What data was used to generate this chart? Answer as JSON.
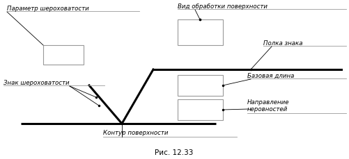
{
  "title": "Рис. 12.33",
  "bg_color": "#ffffff",
  "fig_width": 5.01,
  "fig_height": 2.29,
  "dpi": 100,
  "labels": {
    "param_shero": "Параметр шероховатости",
    "vid_obr": "Вид обработки поверхности",
    "polka": "Полка знака",
    "bazovaya": "Базовая длина",
    "napravlenie": "Направление\nнеровностей",
    "znak_shero": "Знак шероховатости",
    "kontur": "Контур поверхности"
  }
}
